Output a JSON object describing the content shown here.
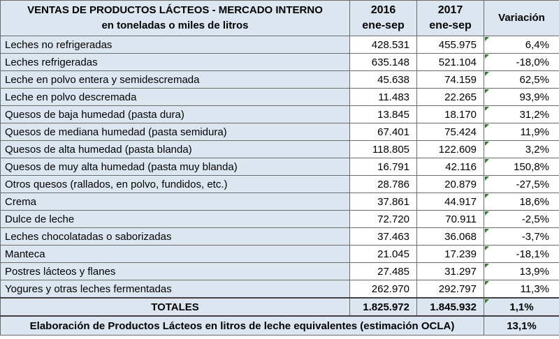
{
  "header": {
    "title_line1": "VENTAS DE PRODUCTOS LÁCTEOS - MERCADO INTERNO",
    "title_line2": "en toneladas o miles de litros",
    "col2016_year": "2016",
    "col2016_period": "ene-sep",
    "col2017_year": "2017",
    "col2017_period": "ene-sep",
    "col_variation": "Variación"
  },
  "rows": [
    {
      "label": "Leches no refrigeradas",
      "v2016": "428.531",
      "v2017": "455.975",
      "var": "6,4%"
    },
    {
      "label": "Leches refrigeradas",
      "v2016": "635.148",
      "v2017": "521.104",
      "var": "-18,0%"
    },
    {
      "label": "Leche en polvo entera y semidescremada",
      "v2016": "45.638",
      "v2017": "74.159",
      "var": "62,5%"
    },
    {
      "label": "Leche en polvo descremada",
      "v2016": "11.483",
      "v2017": "22.265",
      "var": "93,9%"
    },
    {
      "label": "Quesos de baja humedad (pasta dura)",
      "v2016": "13.845",
      "v2017": "18.170",
      "var": "31,2%"
    },
    {
      "label": "Quesos de mediana humedad (pasta semidura)",
      "v2016": "67.401",
      "v2017": "75.424",
      "var": "11,9%"
    },
    {
      "label": "Quesos de alta humedad (pasta blanda)",
      "v2016": "118.805",
      "v2017": "122.609",
      "var": "3,2%"
    },
    {
      "label": "Quesos de muy alta humedad (pasta muy blanda)",
      "v2016": "16.791",
      "v2017": "42.116",
      "var": "150,8%"
    },
    {
      "label": "Otros quesos (rallados, en polvo, fundidos, etc.)",
      "v2016": "28.786",
      "v2017": "20.879",
      "var": "-27,5%"
    },
    {
      "label": "Crema",
      "v2016": "37.861",
      "v2017": "44.917",
      "var": "18,6%"
    },
    {
      "label": "Dulce de leche",
      "v2016": "72.720",
      "v2017": "70.911",
      "var": "-2,5%"
    },
    {
      "label": "Leches chocolatadas o saborizadas",
      "v2016": "37.463",
      "v2017": "36.068",
      "var": "-3,7%"
    },
    {
      "label": "Manteca",
      "v2016": "21.045",
      "v2017": "17.239",
      "var": "-18,1%"
    },
    {
      "label": "Postres lácteos y flanes",
      "v2016": "27.485",
      "v2017": "31.297",
      "var": "13,9%"
    },
    {
      "label": "Yogures y otras leches fermentadas",
      "v2016": "262.970",
      "v2017": "292.797",
      "var": "11,3%"
    }
  ],
  "totals": {
    "label": "TOTALES",
    "v2016": "1.825.972",
    "v2017": "1.845.932",
    "var": "1,1%"
  },
  "note": {
    "label": "Elaboración de Productos Lácteos en litros de leche equivalentes (estimación OCLA)",
    "var": "13,1%"
  },
  "colors": {
    "header_bg": "#dce6f1",
    "border": "#6b6b6b",
    "indicator": "#2e7d32"
  }
}
